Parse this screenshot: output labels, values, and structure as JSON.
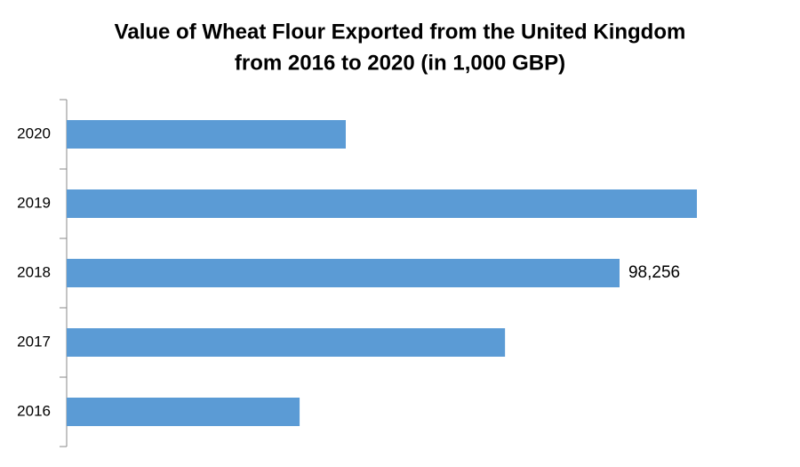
{
  "chart_data": {
    "type": "barh",
    "title": [
      "Value of Wheat Flour Exported from the United Kingdom",
      "from 2016 to 2020 (in 1,000 GBP)"
    ],
    "categories": [
      "2016",
      "2017",
      "2018",
      "2019",
      "2020"
    ],
    "values": [
      41400,
      77900,
      98256,
      112000,
      49600
    ],
    "value_labels": [
      null,
      null,
      "98,256",
      null,
      null
    ],
    "color": "#5b9bd5"
  }
}
